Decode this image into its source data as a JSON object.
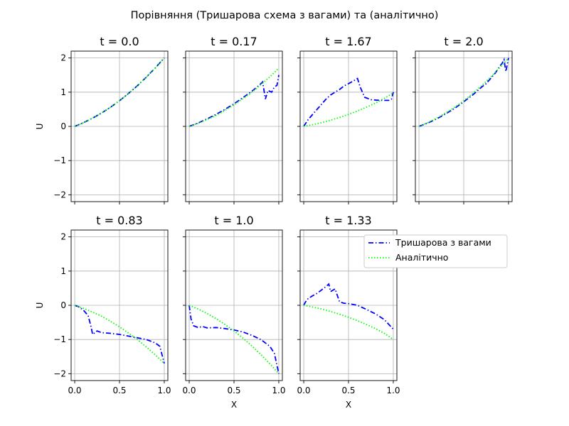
{
  "figure": {
    "title": "Порівняння (Тришарова схема з вагами) та (аналітично)"
  },
  "colors": {
    "numeric": "#0000ff",
    "analytic": "#00ff00",
    "grid": "#b0b0b0",
    "axes": "#000000"
  },
  "legend": {
    "placement": "right of t = 1.33 panel",
    "entries": [
      "Тришарова з вагами",
      "Аналітично"
    ]
  },
  "chart_data": [
    {
      "type": "line",
      "title": "t = 0.0",
      "xlabel": "",
      "ylabel": "U",
      "xlim": [
        -0.04,
        1.04
      ],
      "ylim": [
        -2.2,
        2.2
      ],
      "xticks": [
        0.0,
        0.5,
        1.0
      ],
      "xtick_labels": [],
      "yticks": [
        -2,
        -1,
        0,
        1,
        2
      ],
      "ytick_labels": [
        "−2",
        "−1",
        "0",
        "1",
        "2"
      ],
      "grid": true,
      "series": [
        {
          "name": "Тришарова з вагами",
          "style": "dashdot",
          "x": [
            0.0,
            0.1,
            0.2,
            0.3,
            0.4,
            0.5,
            0.6,
            0.7,
            0.8,
            0.9,
            1.0
          ],
          "y": [
            0.0,
            0.11,
            0.24,
            0.39,
            0.56,
            0.75,
            0.96,
            1.19,
            1.44,
            1.71,
            2.0
          ]
        },
        {
          "name": "Аналітично",
          "style": "dotted",
          "x": [
            0.0,
            0.1,
            0.2,
            0.3,
            0.4,
            0.5,
            0.6,
            0.7,
            0.8,
            0.9,
            1.0
          ],
          "y": [
            0.0,
            0.11,
            0.24,
            0.39,
            0.56,
            0.75,
            0.96,
            1.19,
            1.44,
            1.71,
            2.0
          ]
        }
      ]
    },
    {
      "type": "line",
      "title": "t = 0.17",
      "xlabel": "",
      "ylabel": "",
      "xlim": [
        -0.04,
        1.04
      ],
      "ylim": [
        -2.2,
        2.2
      ],
      "xticks": [
        0.0,
        0.5,
        1.0
      ],
      "xtick_labels": [],
      "yticks": [
        -2,
        -1,
        0,
        1,
        2
      ],
      "ytick_labels": [],
      "grid": true,
      "series": [
        {
          "name": "Тришарова з вагами",
          "style": "dashdot",
          "x": [
            0.0,
            0.1,
            0.2,
            0.3,
            0.4,
            0.5,
            0.6,
            0.7,
            0.78,
            0.82,
            0.85,
            0.88,
            0.92,
            0.95,
            0.98,
            1.0
          ],
          "y": [
            0.0,
            0.1,
            0.22,
            0.35,
            0.5,
            0.66,
            0.84,
            1.03,
            1.2,
            1.3,
            0.8,
            1.05,
            1.0,
            1.15,
            1.2,
            1.5
          ]
        },
        {
          "name": "Аналітично",
          "style": "dotted",
          "x": [
            0.0,
            0.1,
            0.2,
            0.3,
            0.4,
            0.5,
            0.6,
            0.7,
            0.8,
            0.9,
            1.0
          ],
          "y": [
            0.0,
            0.09,
            0.2,
            0.32,
            0.47,
            0.63,
            0.81,
            1.0,
            1.22,
            1.45,
            1.7
          ]
        }
      ]
    },
    {
      "type": "line",
      "title": "t = 1.67",
      "xlabel": "",
      "ylabel": "",
      "xlim": [
        -0.04,
        1.04
      ],
      "ylim": [
        -2.2,
        2.2
      ],
      "xticks": [
        0.0,
        0.5,
        1.0
      ],
      "xtick_labels": [],
      "yticks": [
        -2,
        -1,
        0,
        1,
        2
      ],
      "ytick_labels": [],
      "grid": true,
      "series": [
        {
          "name": "Тришарова з вагами",
          "style": "dashdot",
          "x": [
            0.0,
            0.05,
            0.1,
            0.15,
            0.2,
            0.25,
            0.3,
            0.35,
            0.4,
            0.45,
            0.5,
            0.55,
            0.6,
            0.63,
            0.68,
            0.75,
            0.85,
            0.95,
            0.98,
            1.0
          ],
          "y": [
            0.0,
            0.2,
            0.35,
            0.5,
            0.65,
            0.8,
            0.92,
            1.0,
            1.08,
            1.18,
            1.25,
            1.32,
            1.4,
            1.15,
            0.85,
            0.78,
            0.76,
            0.76,
            0.8,
            1.0
          ]
        },
        {
          "name": "Аналітично",
          "style": "dotted",
          "x": [
            0.0,
            0.1,
            0.2,
            0.3,
            0.4,
            0.5,
            0.6,
            0.7,
            0.8,
            0.9,
            1.0
          ],
          "y": [
            0.0,
            0.05,
            0.11,
            0.18,
            0.26,
            0.35,
            0.45,
            0.56,
            0.68,
            0.82,
            0.98
          ]
        }
      ]
    },
    {
      "type": "line",
      "title": "t = 2.0",
      "xlabel": "",
      "ylabel": "",
      "xlim": [
        -0.04,
        1.04
      ],
      "ylim": [
        -2.2,
        2.2
      ],
      "xticks": [
        0.0,
        0.5,
        1.0
      ],
      "xtick_labels": [],
      "yticks": [
        -2,
        -1,
        0,
        1,
        2
      ],
      "ytick_labels": [],
      "grid": true,
      "series": [
        {
          "name": "Тришарова з вагами",
          "style": "dashdot",
          "x": [
            0.0,
            0.1,
            0.2,
            0.3,
            0.4,
            0.5,
            0.6,
            0.7,
            0.75,
            0.8,
            0.85,
            0.9,
            0.93,
            0.95,
            0.97,
            1.0
          ],
          "y": [
            0.0,
            0.1,
            0.22,
            0.37,
            0.53,
            0.72,
            0.92,
            1.15,
            1.25,
            1.4,
            1.55,
            1.75,
            1.85,
            1.95,
            1.6,
            2.0
          ]
        },
        {
          "name": "Аналітично",
          "style": "dotted",
          "x": [
            0.0,
            0.1,
            0.2,
            0.3,
            0.4,
            0.5,
            0.6,
            0.7,
            0.8,
            0.9,
            1.0
          ],
          "y": [
            0.0,
            0.11,
            0.24,
            0.39,
            0.56,
            0.75,
            0.96,
            1.19,
            1.44,
            1.71,
            2.0
          ]
        }
      ]
    },
    {
      "type": "line",
      "title": "t = 0.83",
      "xlabel": "",
      "ylabel": "U",
      "xlim": [
        -0.04,
        1.04
      ],
      "ylim": [
        -2.2,
        2.2
      ],
      "xticks": [
        0.0,
        0.5,
        1.0
      ],
      "xtick_labels": [
        "0.0",
        "0.5",
        "1.0"
      ],
      "yticks": [
        -2,
        -1,
        0,
        1,
        2
      ],
      "ytick_labels": [
        "−2",
        "−1",
        "0",
        "1",
        "2"
      ],
      "grid": true,
      "series": [
        {
          "name": "Тришарова з вагами",
          "style": "dashdot",
          "x": [
            0.0,
            0.05,
            0.1,
            0.15,
            0.18,
            0.2,
            0.25,
            0.3,
            0.4,
            0.5,
            0.6,
            0.7,
            0.8,
            0.9,
            0.95,
            1.0
          ],
          "y": [
            0.0,
            -0.05,
            -0.15,
            -0.3,
            -0.6,
            -0.85,
            -0.75,
            -0.8,
            -0.82,
            -0.85,
            -0.9,
            -0.95,
            -1.0,
            -1.1,
            -1.2,
            -1.7
          ]
        },
        {
          "name": "Аналітично",
          "style": "dotted",
          "x": [
            0.0,
            0.1,
            0.2,
            0.3,
            0.4,
            0.5,
            0.6,
            0.7,
            0.8,
            0.9,
            1.0
          ],
          "y": [
            0.0,
            -0.09,
            -0.2,
            -0.32,
            -0.47,
            -0.63,
            -0.81,
            -1.0,
            -1.22,
            -1.45,
            -1.7
          ]
        }
      ]
    },
    {
      "type": "line",
      "title": "t = 1.0",
      "xlabel": "X",
      "ylabel": "",
      "xlim": [
        -0.04,
        1.04
      ],
      "ylim": [
        -2.2,
        2.2
      ],
      "xticks": [
        0.0,
        0.5,
        1.0
      ],
      "xtick_labels": [
        "0.0",
        "0.5",
        "1.0"
      ],
      "yticks": [
        -2,
        -1,
        0,
        1,
        2
      ],
      "ytick_labels": [],
      "grid": true,
      "series": [
        {
          "name": "Тришарова з вагами",
          "style": "dashdot",
          "x": [
            0.0,
            0.02,
            0.05,
            0.1,
            0.15,
            0.2,
            0.3,
            0.4,
            0.5,
            0.6,
            0.7,
            0.8,
            0.9,
            0.95,
            1.0
          ],
          "y": [
            0.0,
            -0.4,
            -0.6,
            -0.65,
            -0.62,
            -0.66,
            -0.65,
            -0.68,
            -0.72,
            -0.78,
            -0.88,
            -1.0,
            -1.2,
            -1.4,
            -2.0
          ]
        },
        {
          "name": "Аналітично",
          "style": "dotted",
          "x": [
            0.0,
            0.1,
            0.2,
            0.3,
            0.4,
            0.5,
            0.6,
            0.7,
            0.8,
            0.9,
            1.0
          ],
          "y": [
            0.0,
            -0.11,
            -0.24,
            -0.39,
            -0.56,
            -0.75,
            -0.96,
            -1.19,
            -1.44,
            -1.71,
            -2.0
          ]
        }
      ]
    },
    {
      "type": "line",
      "title": "t = 1.33",
      "xlabel": "X",
      "ylabel": "",
      "xlim": [
        -0.04,
        1.04
      ],
      "ylim": [
        -2.2,
        2.2
      ],
      "xticks": [
        0.0,
        0.5,
        1.0
      ],
      "xtick_labels": [
        "0.0",
        "0.5",
        "1.0"
      ],
      "yticks": [
        -2,
        -1,
        0,
        1,
        2
      ],
      "ytick_labels": [],
      "grid": true,
      "series": [
        {
          "name": "Тришарова з вагами",
          "style": "dashdot",
          "x": [
            0.0,
            0.02,
            0.05,
            0.1,
            0.15,
            0.2,
            0.25,
            0.28,
            0.3,
            0.35,
            0.4,
            0.45,
            0.5,
            0.6,
            0.7,
            0.8,
            0.9,
            1.0
          ],
          "y": [
            0.0,
            0.1,
            0.2,
            0.28,
            0.35,
            0.45,
            0.55,
            0.62,
            0.4,
            0.48,
            0.1,
            0.06,
            0.05,
            0.0,
            -0.12,
            -0.25,
            -0.42,
            -0.7
          ]
        },
        {
          "name": "Аналітично",
          "style": "dotted",
          "x": [
            0.0,
            0.1,
            0.2,
            0.3,
            0.4,
            0.5,
            0.6,
            0.7,
            0.8,
            0.9,
            1.0
          ],
          "y": [
            0.0,
            -0.05,
            -0.11,
            -0.18,
            -0.26,
            -0.35,
            -0.45,
            -0.56,
            -0.68,
            -0.82,
            -1.0
          ]
        }
      ]
    }
  ]
}
